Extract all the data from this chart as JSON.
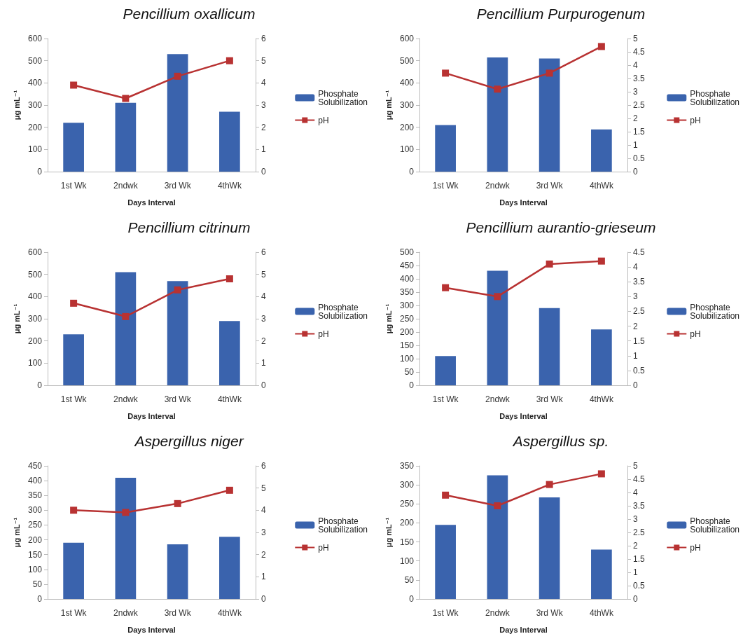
{
  "chart_data": [
    {
      "type": "bar",
      "title": "Pencillium oxallicum",
      "xlabel": "Days Interval",
      "ylabel": "μg mL⁻¹",
      "categories": [
        "1st Wk",
        "2ndwk",
        "3rd Wk",
        "4thWk"
      ],
      "series": [
        {
          "name": "Phosphate Solubilization",
          "color": "#3a63ad",
          "values": [
            220,
            310,
            530,
            270
          ]
        },
        {
          "name": "pH",
          "type": "line",
          "axis": "y2",
          "color": "#b83232",
          "values": [
            3.9,
            3.3,
            4.3,
            5.0
          ]
        }
      ],
      "ylim": [
        0,
        600
      ],
      "yticks": [
        0,
        100,
        200,
        300,
        400,
        500,
        600
      ],
      "y2lim": [
        0,
        6
      ],
      "y2ticks": [
        0,
        1,
        2,
        3,
        4,
        5,
        6
      ],
      "legend": "right",
      "grid": false,
      "marker": "square"
    },
    {
      "type": "bar",
      "title": "Pencillium Purpurogenum",
      "xlabel": "Days Interval",
      "ylabel": "μg mL⁻¹",
      "categories": [
        "1st Wk",
        "2ndwk",
        "3rd Wk",
        "4thWk"
      ],
      "series": [
        {
          "name": "Phosphate Solubilization",
          "color": "#3a63ad",
          "values": [
            210,
            515,
            510,
            190
          ]
        },
        {
          "name": "pH",
          "type": "line",
          "axis": "y2",
          "color": "#b83232",
          "values": [
            3.7,
            3.1,
            3.7,
            4.7
          ]
        }
      ],
      "ylim": [
        0,
        600
      ],
      "yticks": [
        0,
        100,
        200,
        300,
        400,
        500,
        600
      ],
      "y2lim": [
        0,
        5
      ],
      "y2ticks": [
        0,
        0.5,
        1,
        1.5,
        2,
        2.5,
        3,
        3.5,
        4,
        4.5,
        5
      ],
      "legend": "right",
      "grid": false,
      "marker": "square"
    },
    {
      "type": "bar",
      "title": "Pencillium citrinum",
      "xlabel": "Days Interval",
      "ylabel": "μg mL⁻¹",
      "categories": [
        "1st Wk",
        "2ndwk",
        "3rd Wk",
        "4thWk"
      ],
      "series": [
        {
          "name": "Phosphate Solubilization",
          "color": "#3a63ad",
          "values": [
            230,
            510,
            470,
            290
          ]
        },
        {
          "name": "pH",
          "type": "line",
          "axis": "y2",
          "color": "#b83232",
          "values": [
            3.7,
            3.1,
            4.3,
            4.8
          ]
        }
      ],
      "ylim": [
        0,
        600
      ],
      "yticks": [
        0,
        100,
        200,
        300,
        400,
        500,
        600
      ],
      "y2lim": [
        0,
        6
      ],
      "y2ticks": [
        0,
        1,
        2,
        3,
        4,
        5,
        6
      ],
      "legend": "right",
      "grid": false,
      "marker": "square"
    },
    {
      "type": "bar",
      "title": "Pencillium aurantio-grieseum",
      "xlabel": "Days Interval",
      "ylabel": "μg mL⁻¹",
      "categories": [
        "1st Wk",
        "2ndwk",
        "3rd Wk",
        "4thWk"
      ],
      "series": [
        {
          "name": "Phosphate Solubilization",
          "color": "#3a63ad",
          "values": [
            110,
            430,
            290,
            210
          ]
        },
        {
          "name": "pH",
          "type": "line",
          "axis": "y2",
          "color": "#b83232",
          "values": [
            3.3,
            3.0,
            4.1,
            4.2
          ]
        }
      ],
      "ylim": [
        0,
        500
      ],
      "yticks": [
        0,
        50,
        100,
        150,
        200,
        250,
        300,
        350,
        400,
        450,
        500
      ],
      "y2lim": [
        0,
        4.5
      ],
      "y2ticks": [
        0,
        0.5,
        1,
        1.5,
        2,
        2.5,
        3,
        3.5,
        4,
        4.5
      ],
      "legend": "right",
      "grid": false,
      "marker": "square"
    },
    {
      "type": "bar",
      "title": "Aspergillus niger",
      "xlabel": "Days Interval",
      "ylabel": "μg mL⁻¹",
      "categories": [
        "1st Wk",
        "2ndwk",
        "3rd Wk",
        "4thWk"
      ],
      "series": [
        {
          "name": "Phosphate Solubilization",
          "color": "#3a63ad",
          "values": [
            190,
            410,
            185,
            210
          ]
        },
        {
          "name": "pH",
          "type": "line",
          "axis": "y2",
          "color": "#b83232",
          "values": [
            4.0,
            3.9,
            4.3,
            4.9
          ]
        }
      ],
      "ylim": [
        0,
        450
      ],
      "yticks": [
        0,
        50,
        100,
        150,
        200,
        250,
        300,
        350,
        400,
        450
      ],
      "y2lim": [
        0,
        6
      ],
      "y2ticks": [
        0,
        1,
        2,
        3,
        4,
        5,
        6
      ],
      "legend": "right",
      "grid": false,
      "marker": "square"
    },
    {
      "type": "bar",
      "title": "Aspergillus sp.",
      "xlabel": "Days Interval",
      "ylabel": "μg mL⁻¹",
      "categories": [
        "1st Wk",
        "2ndwk",
        "3rd Wk",
        "4thWk"
      ],
      "series": [
        {
          "name": "Phosphate Solubilization",
          "color": "#3a63ad",
          "values": [
            195,
            325,
            267,
            130
          ]
        },
        {
          "name": "pH",
          "type": "line",
          "axis": "y2",
          "color": "#b83232",
          "values": [
            3.9,
            3.5,
            4.3,
            4.7
          ]
        }
      ],
      "ylim": [
        0,
        350
      ],
      "yticks": [
        0,
        50,
        100,
        150,
        200,
        250,
        300,
        350
      ],
      "y2lim": [
        0,
        5
      ],
      "y2ticks": [
        0,
        0.5,
        1,
        1.5,
        2,
        2.5,
        3,
        3.5,
        4,
        4.5,
        5
      ],
      "legend": "right",
      "grid": false,
      "marker": "square"
    }
  ]
}
